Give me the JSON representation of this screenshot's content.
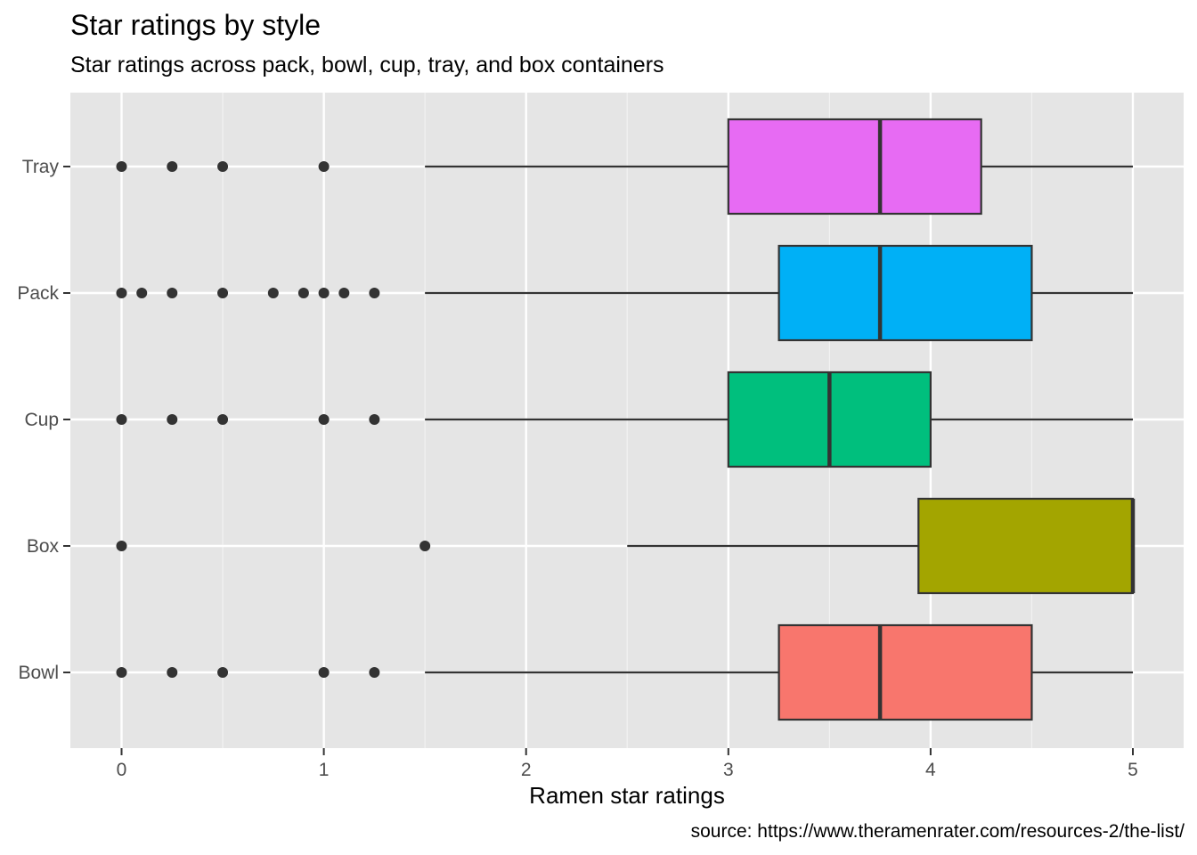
{
  "title": "Star ratings by style",
  "subtitle": "Star ratings across pack, bowl, cup, tray, and box containers",
  "caption": "source: https://www.theramenrater.com/resources-2/the-list/",
  "chart_data": {
    "type": "boxplot",
    "orientation": "horizontal",
    "xlabel": "Ramen star ratings",
    "ylabel": "",
    "xlim": [
      -0.25,
      5.25
    ],
    "xticks": [
      0,
      1,
      2,
      3,
      4,
      5
    ],
    "categories": [
      "Bowl",
      "Box",
      "Cup",
      "Pack",
      "Tray"
    ],
    "grid": true,
    "legend": "none",
    "boxes": [
      {
        "name": "Bowl",
        "color": "#F8766D",
        "whisker_low": 1.5,
        "q1": 3.25,
        "median": 3.75,
        "q3": 4.5,
        "whisker_high": 5,
        "outliers": [
          0,
          0.25,
          0.5,
          1,
          1.25
        ]
      },
      {
        "name": "Box",
        "color": "#A3A500",
        "whisker_low": 2.5,
        "q1": 3.94,
        "median": 5,
        "q3": 5,
        "whisker_high": 5,
        "outliers": [
          0,
          1.5
        ]
      },
      {
        "name": "Cup",
        "color": "#00BF7D",
        "whisker_low": 1.5,
        "q1": 3,
        "median": 3.5,
        "q3": 4,
        "whisker_high": 5,
        "outliers": [
          0,
          0.25,
          0.5,
          1,
          1.25
        ]
      },
      {
        "name": "Pack",
        "color": "#00B0F6",
        "whisker_low": 1.5,
        "q1": 3.25,
        "median": 3.75,
        "q3": 4.5,
        "whisker_high": 5,
        "outliers": [
          0,
          0.1,
          0.25,
          0.5,
          0.75,
          0.9,
          1,
          1.1,
          1.25
        ]
      },
      {
        "name": "Tray",
        "color": "#E76BF3",
        "whisker_low": 1.5,
        "q1": 3,
        "median": 3.75,
        "q3": 4.25,
        "whisker_high": 5,
        "outliers": [
          0,
          0.25,
          0.5,
          1
        ]
      }
    ]
  }
}
